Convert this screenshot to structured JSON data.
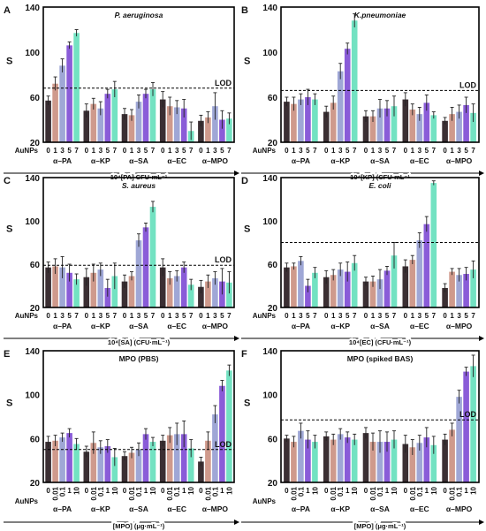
{
  "colors": [
    "#3b2f33",
    "#cf9a8c",
    "#9fa7d6",
    "#8a5cd8",
    "#73e2c2"
  ],
  "chart_data": [
    {
      "panel": "A",
      "type": "bar",
      "title": "P. aeruginosa",
      "title_italic": true,
      "ylabel": "S",
      "ylim": [
        20,
        140
      ],
      "yticks": [
        "20",
        "60",
        "100",
        "140"
      ],
      "lod": 68,
      "lod_label": "LOD",
      "groups": [
        "α–PA",
        "α–KP",
        "α–SA",
        "α–EC",
        "α–MPO"
      ],
      "sublabels": [
        "0",
        "1",
        "3",
        "5",
        "7"
      ],
      "aunps_label": "AuNPs",
      "xlabel": "10⁴[PA] CFU·mL⁻¹",
      "values": [
        [
          57,
          72,
          88,
          106,
          117
        ],
        [
          48,
          54,
          50,
          63,
          67
        ],
        [
          45,
          44,
          56,
          63,
          67
        ],
        [
          58,
          52,
          51,
          50,
          30
        ],
        [
          39,
          42,
          52,
          40,
          41
        ]
      ],
      "errors": [
        [
          4,
          6,
          6,
          3,
          3
        ],
        [
          6,
          5,
          6,
          4,
          7
        ],
        [
          5,
          5,
          6,
          4,
          6
        ],
        [
          7,
          8,
          6,
          8,
          8
        ],
        [
          5,
          5,
          12,
          8,
          5
        ]
      ]
    },
    {
      "panel": "B",
      "type": "bar",
      "title": "K.pneumoniae",
      "title_italic": true,
      "ylabel": "S",
      "ylim": [
        20,
        140
      ],
      "yticks": [
        "20",
        "60",
        "100",
        "140"
      ],
      "lod": 66,
      "lod_label": "LOD",
      "groups": [
        "α–PA",
        "α–KP",
        "α–SA",
        "α–EC",
        "α–MPO"
      ],
      "sublabels": [
        "0",
        "1",
        "3",
        "5",
        "7"
      ],
      "aunps_label": "AuNPs",
      "xlabel": "10⁴[KP] (CFU·mL⁻¹",
      "values": [
        [
          56,
          54,
          58,
          60,
          58
        ],
        [
          47,
          55,
          83,
          103,
          128
        ],
        [
          43,
          43,
          50,
          50,
          52
        ],
        [
          58,
          49,
          45,
          55,
          44
        ],
        [
          39,
          45,
          47,
          53,
          46
        ]
      ],
      "errors": [
        [
          4,
          6,
          5,
          7,
          5
        ],
        [
          5,
          6,
          7,
          5,
          6
        ],
        [
          5,
          5,
          8,
          7,
          9
        ],
        [
          6,
          5,
          6,
          7,
          3
        ],
        [
          3,
          6,
          6,
          7,
          8
        ]
      ]
    },
    {
      "panel": "C",
      "type": "bar",
      "title": "S. aureus",
      "title_italic": true,
      "ylabel": "S",
      "ylim": [
        20,
        140
      ],
      "yticks": [
        "20",
        "60",
        "100",
        "140"
      ],
      "lod": 59,
      "lod_label": "LOD",
      "groups": [
        "α–PA",
        "α–KP",
        "α–SA",
        "α–EC",
        "α–MPO"
      ],
      "sublabels": [
        "0",
        "1",
        "3",
        "5",
        "7"
      ],
      "aunps_label": "AuNPs",
      "xlabel": "10⁴[SA] (CFU·mL⁻¹)",
      "values": [
        [
          57,
          58,
          57,
          52,
          46
        ],
        [
          48,
          52,
          55,
          38,
          49
        ],
        [
          44,
          49,
          82,
          94,
          113
        ],
        [
          57,
          47,
          49,
          57,
          41
        ],
        [
          39,
          44,
          47,
          44,
          43
        ]
      ],
      "errors": [
        [
          5,
          7,
          10,
          8,
          5
        ],
        [
          8,
          8,
          6,
          8,
          12
        ],
        [
          6,
          4,
          6,
          4,
          5
        ],
        [
          8,
          6,
          5,
          5,
          5
        ],
        [
          6,
          6,
          6,
          12,
          10
        ]
      ]
    },
    {
      "panel": "D",
      "type": "bar",
      "title": "E. coli",
      "title_italic": true,
      "ylabel": "S",
      "ylim": [
        20,
        140
      ],
      "yticks": [
        "20",
        "60",
        "100",
        "140"
      ],
      "lod": 80,
      "lod_label": "",
      "groups": [
        "α–PA",
        "α–KP",
        "α–SA",
        "α–EC",
        "α–MPO"
      ],
      "sublabels": [
        "0",
        "1",
        "3",
        "5",
        "7"
      ],
      "aunps_label": "AuNPs",
      "xlabel": "10⁴[EC] (CFU·mL⁻¹)",
      "values": [
        [
          57,
          58,
          63,
          40,
          52
        ],
        [
          48,
          50,
          55,
          53,
          61
        ],
        [
          44,
          44,
          46,
          54,
          68
        ],
        [
          58,
          64,
          82,
          97,
          135
        ],
        [
          38,
          53,
          50,
          51,
          55
        ]
      ],
      "errors": [
        [
          4,
          3,
          4,
          6,
          5
        ],
        [
          6,
          5,
          6,
          9,
          7
        ],
        [
          4,
          5,
          9,
          4,
          12
        ],
        [
          6,
          4,
          7,
          7,
          2
        ],
        [
          4,
          3,
          6,
          6,
          8
        ]
      ]
    },
    {
      "panel": "E",
      "type": "bar",
      "title": "MPO (PBS)",
      "title_italic": false,
      "ylabel": "S",
      "ylim": [
        20,
        140
      ],
      "yticks": [
        "20",
        "60",
        "100",
        "140"
      ],
      "lod": 50,
      "lod_label": "LOD",
      "groups": [
        "α–PA",
        "α–KP",
        "α–SA",
        "α–EC",
        "α–MPO"
      ],
      "sublabels": [
        "0",
        "0.01",
        "0.1",
        "1",
        "10"
      ],
      "aunps_label": "AuNPs",
      "xlabel": "[MPO] (μg·mL⁻¹)",
      "values": [
        [
          57,
          58,
          61,
          65,
          55
        ],
        [
          48,
          56,
          52,
          53,
          43
        ],
        [
          44,
          47,
          50,
          64,
          57
        ],
        [
          58,
          63,
          64,
          64,
          51
        ],
        [
          39,
          58,
          82,
          108,
          122
        ]
      ],
      "errors": [
        [
          5,
          5,
          4,
          4,
          5
        ],
        [
          5,
          10,
          6,
          6,
          8
        ],
        [
          4,
          5,
          6,
          5,
          4
        ],
        [
          5,
          7,
          10,
          12,
          8
        ],
        [
          4,
          8,
          8,
          5,
          5
        ]
      ]
    },
    {
      "panel": "F",
      "type": "bar",
      "title": "MPO (spiked BAS)",
      "title_italic": false,
      "ylabel": "S",
      "ylim": [
        20,
        140
      ],
      "yticks": [
        "20",
        "60",
        "100",
        "140"
      ],
      "lod": 77,
      "lod_label": "LOD",
      "groups": [
        "α–PA",
        "α–KP",
        "α–SA",
        "α–EC",
        "α–MPO"
      ],
      "sublabels": [
        "0",
        "0.01",
        "0.1",
        "1",
        "10"
      ],
      "aunps_label": "AuNPs",
      "xlabel": "[MPO] (μg·mL⁻¹)",
      "values": [
        [
          60,
          57,
          67,
          59,
          57
        ],
        [
          62,
          59,
          64,
          61,
          59
        ],
        [
          65,
          57,
          57,
          57,
          59
        ],
        [
          55,
          52,
          56,
          61,
          54
        ],
        [
          59,
          68,
          98,
          121,
          126
        ]
      ],
      "errors": [
        [
          3,
          5,
          7,
          8,
          6
        ],
        [
          4,
          5,
          5,
          5,
          5
        ],
        [
          5,
          8,
          10,
          9,
          8
        ],
        [
          8,
          7,
          7,
          9,
          8
        ],
        [
          5,
          6,
          6,
          4,
          10
        ]
      ]
    }
  ]
}
